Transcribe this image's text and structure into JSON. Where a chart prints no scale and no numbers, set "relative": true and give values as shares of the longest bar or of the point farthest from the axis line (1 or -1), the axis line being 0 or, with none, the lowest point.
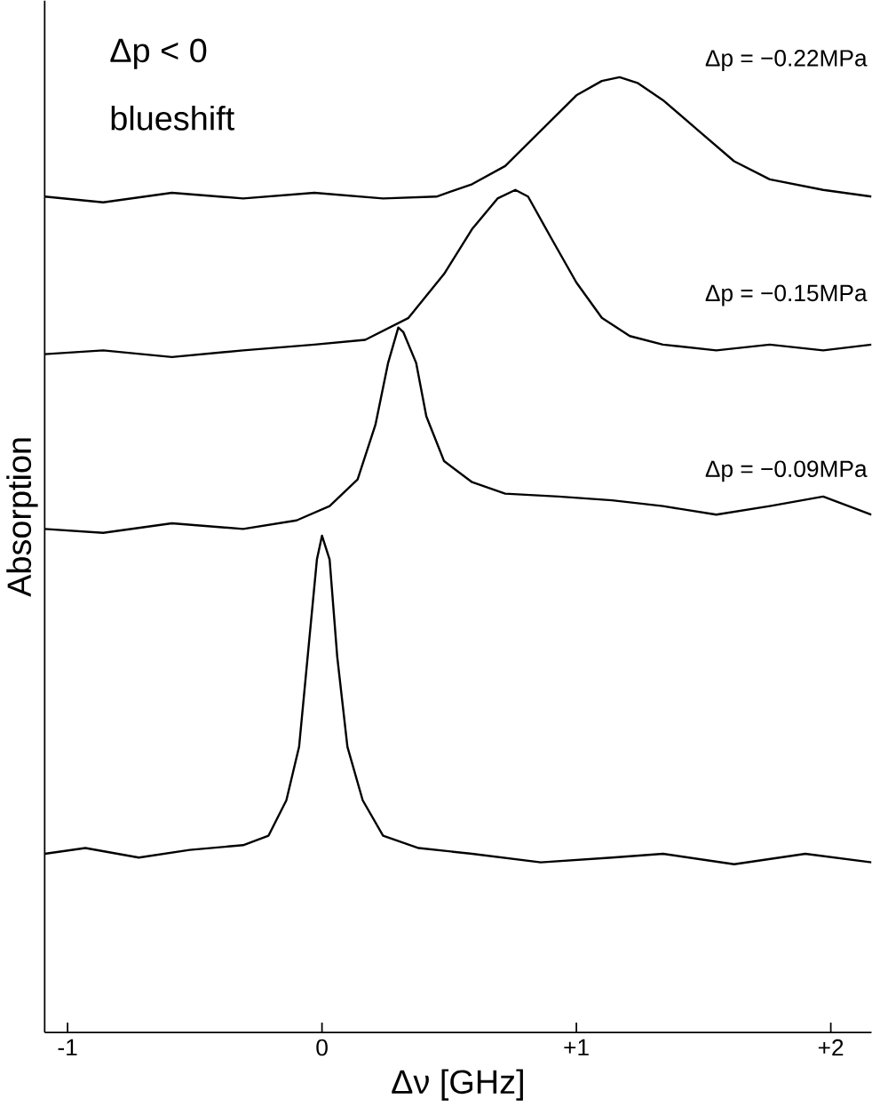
{
  "chart_data": {
    "type": "line",
    "relative": true,
    "xlabel": "Δν [GHz]",
    "ylabel": "Absorption",
    "annotations": [
      "Δp < 0",
      "blueshift"
    ],
    "xlim": [
      -1.09,
      2.16
    ],
    "xticks": [
      {
        "value": -1,
        "label": "-1"
      },
      0,
      {
        "value": 1,
        "label": "+1"
      },
      {
        "value": 2,
        "label": "+2"
      }
    ],
    "grid": false,
    "legend": false,
    "marker": "none",
    "line_style": "solid",
    "series": [
      {
        "color": "#000000",
        "x": [
          -1.09,
          -0.93,
          -0.72,
          -0.52,
          -0.31,
          -0.21,
          -0.14,
          -0.09,
          -0.05,
          -0.02,
          0,
          0.03,
          0.06,
          0.1,
          0.16,
          0.24,
          0.38,
          0.59,
          0.86,
          1.14,
          1.34,
          1.62,
          1.9,
          2.16
        ],
        "values": [
          0.187,
          0.193,
          0.183,
          0.191,
          0.196,
          0.206,
          0.243,
          0.299,
          0.411,
          0.495,
          0.52,
          0.495,
          0.393,
          0.299,
          0.243,
          0.206,
          0.193,
          0.187,
          0.178,
          0.183,
          0.187,
          0.176,
          0.187,
          0.178
        ]
      },
      {
        "name": "Δp = −0.09MPa",
        "color": "#000000",
        "x": [
          -1.09,
          -0.86,
          -0.59,
          -0.31,
          -0.1,
          0.03,
          0.14,
          0.21,
          0.26,
          0.3,
          0.32,
          0.37,
          0.41,
          0.48,
          0.59,
          0.72,
          0.93,
          1.14,
          1.34,
          1.55,
          1.76,
          1.97,
          2.16
        ],
        "values": [
          0.527,
          0.523,
          0.533,
          0.527,
          0.536,
          0.551,
          0.579,
          0.636,
          0.701,
          0.738,
          0.733,
          0.701,
          0.645,
          0.598,
          0.576,
          0.564,
          0.561,
          0.557,
          0.551,
          0.542,
          0.551,
          0.561,
          0.542
        ]
      },
      {
        "name": "Δp = −0.15MPa",
        "color": "#000000",
        "x": [
          -1.09,
          -0.86,
          -0.59,
          -0.31,
          -0.03,
          0.17,
          0.34,
          0.48,
          0.59,
          0.69,
          0.76,
          0.81,
          0.9,
          1.0,
          1.1,
          1.21,
          1.34,
          1.55,
          1.76,
          1.97,
          2.16
        ],
        "values": [
          0.71,
          0.714,
          0.707,
          0.714,
          0.72,
          0.725,
          0.748,
          0.794,
          0.841,
          0.873,
          0.882,
          0.875,
          0.832,
          0.785,
          0.748,
          0.729,
          0.72,
          0.714,
          0.72,
          0.714,
          0.72
        ]
      },
      {
        "name": "Δp = −0.22MPa",
        "color": "#000000",
        "x": [
          -1.09,
          -0.86,
          -0.59,
          -0.31,
          -0.03,
          0.24,
          0.45,
          0.59,
          0.72,
          0.86,
          1.0,
          1.1,
          1.17,
          1.24,
          1.34,
          1.48,
          1.62,
          1.76,
          1.97,
          2.16
        ],
        "values": [
          0.875,
          0.869,
          0.879,
          0.873,
          0.879,
          0.873,
          0.875,
          0.888,
          0.907,
          0.944,
          0.981,
          0.996,
          1.0,
          0.994,
          0.976,
          0.944,
          0.912,
          0.893,
          0.882,
          0.875
        ]
      }
    ]
  }
}
